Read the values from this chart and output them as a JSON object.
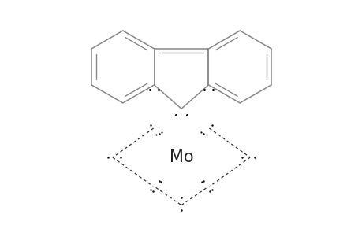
{
  "background_color": "#ffffff",
  "gray": "#888888",
  "dark": "#222222",
  "mo_label": "Mo",
  "mo_fontsize": 15,
  "figsize": [
    4.6,
    3.0
  ],
  "dpi": 100,
  "xlim": [
    -2.8,
    2.8
  ],
  "ylim": [
    -2.2,
    2.8
  ]
}
